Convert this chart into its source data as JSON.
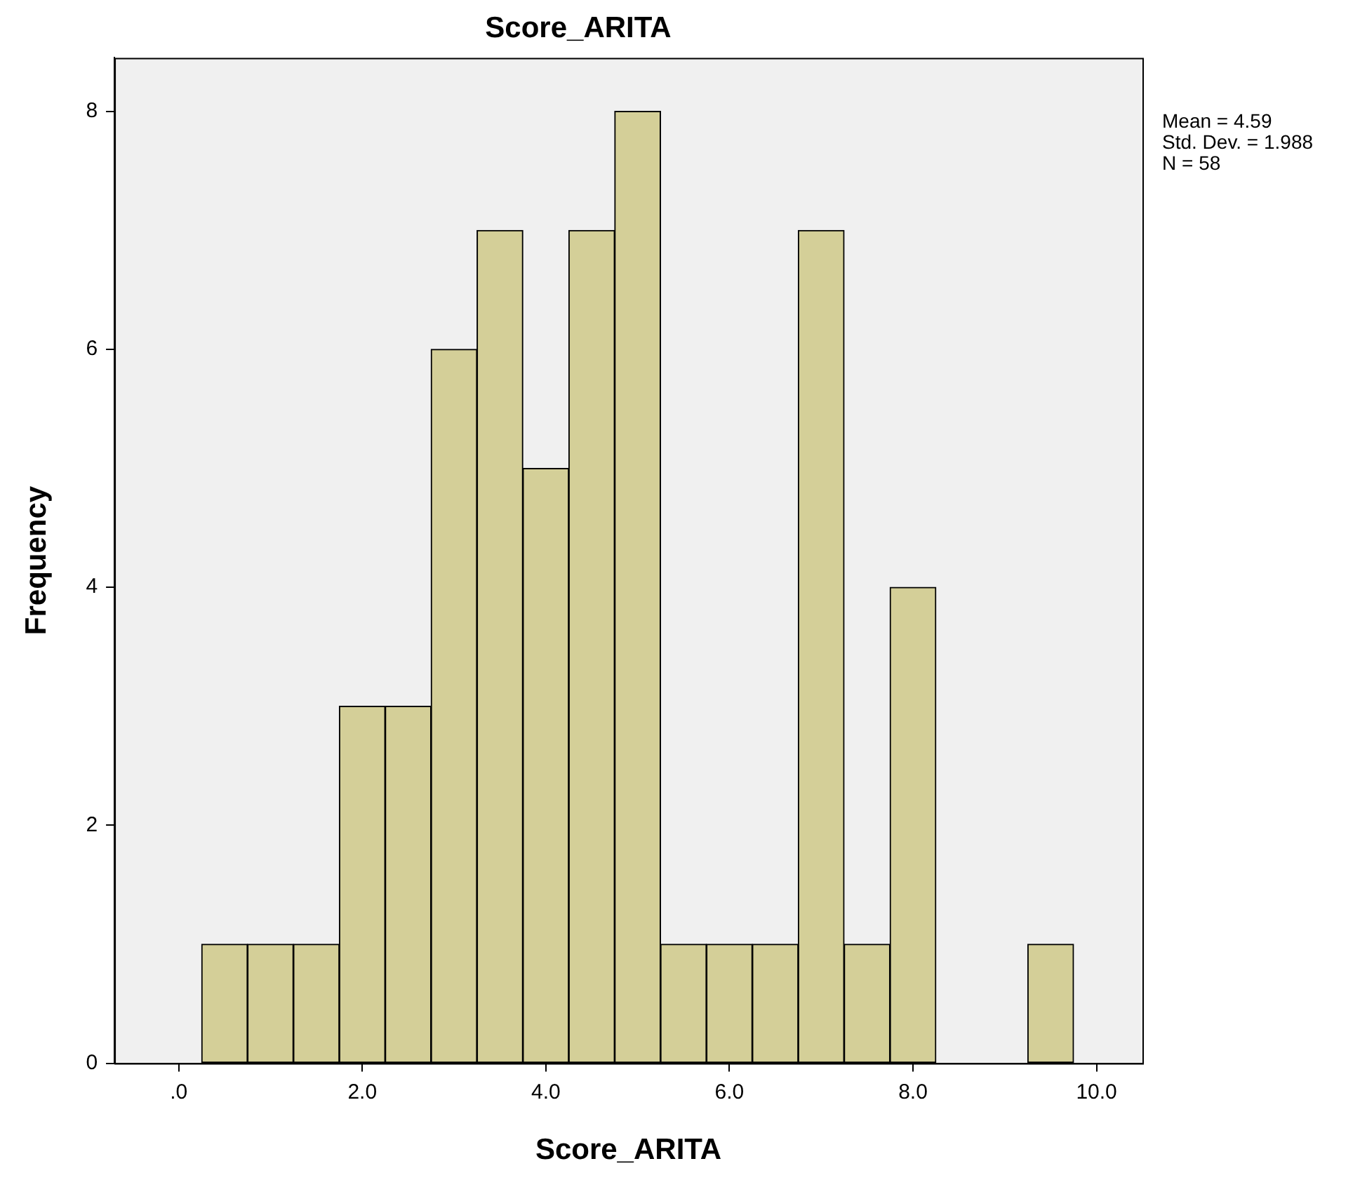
{
  "chart_data": {
    "type": "histogram",
    "title": "Score_ARITA",
    "xlabel": "Score_ARITA",
    "ylabel": "Frequency",
    "bins": [
      0.25,
      0.75,
      1.25,
      1.75,
      2.25,
      2.75,
      3.25,
      3.75,
      4.25,
      4.75,
      5.25,
      5.75,
      6.25,
      6.75,
      7.25,
      7.75,
      8.25,
      8.75,
      9.25,
      9.75
    ],
    "values": [
      1,
      1,
      1,
      3,
      3,
      6,
      7,
      5,
      7,
      8,
      1,
      1,
      1,
      7,
      1,
      4,
      0,
      0,
      1
    ],
    "color": "#d4cf98",
    "xlim": [
      -0.7,
      10.5
    ],
    "xticks": [
      {
        "value": 0,
        "label": ".0"
      },
      {
        "value": 2,
        "label": "2.0"
      },
      {
        "value": 4,
        "label": "4.0"
      },
      {
        "value": 6,
        "label": "6.0"
      },
      {
        "value": 8,
        "label": "8.0"
      },
      {
        "value": 10,
        "label": "10.0"
      }
    ],
    "ylim": [
      0,
      8.45
    ],
    "yticks": [
      0,
      2,
      4,
      6,
      8
    ],
    "grid": false,
    "legend": false,
    "annotations": [
      "Mean = 4.59",
      "Std. Dev. = 1.988",
      "N = 58"
    ]
  }
}
